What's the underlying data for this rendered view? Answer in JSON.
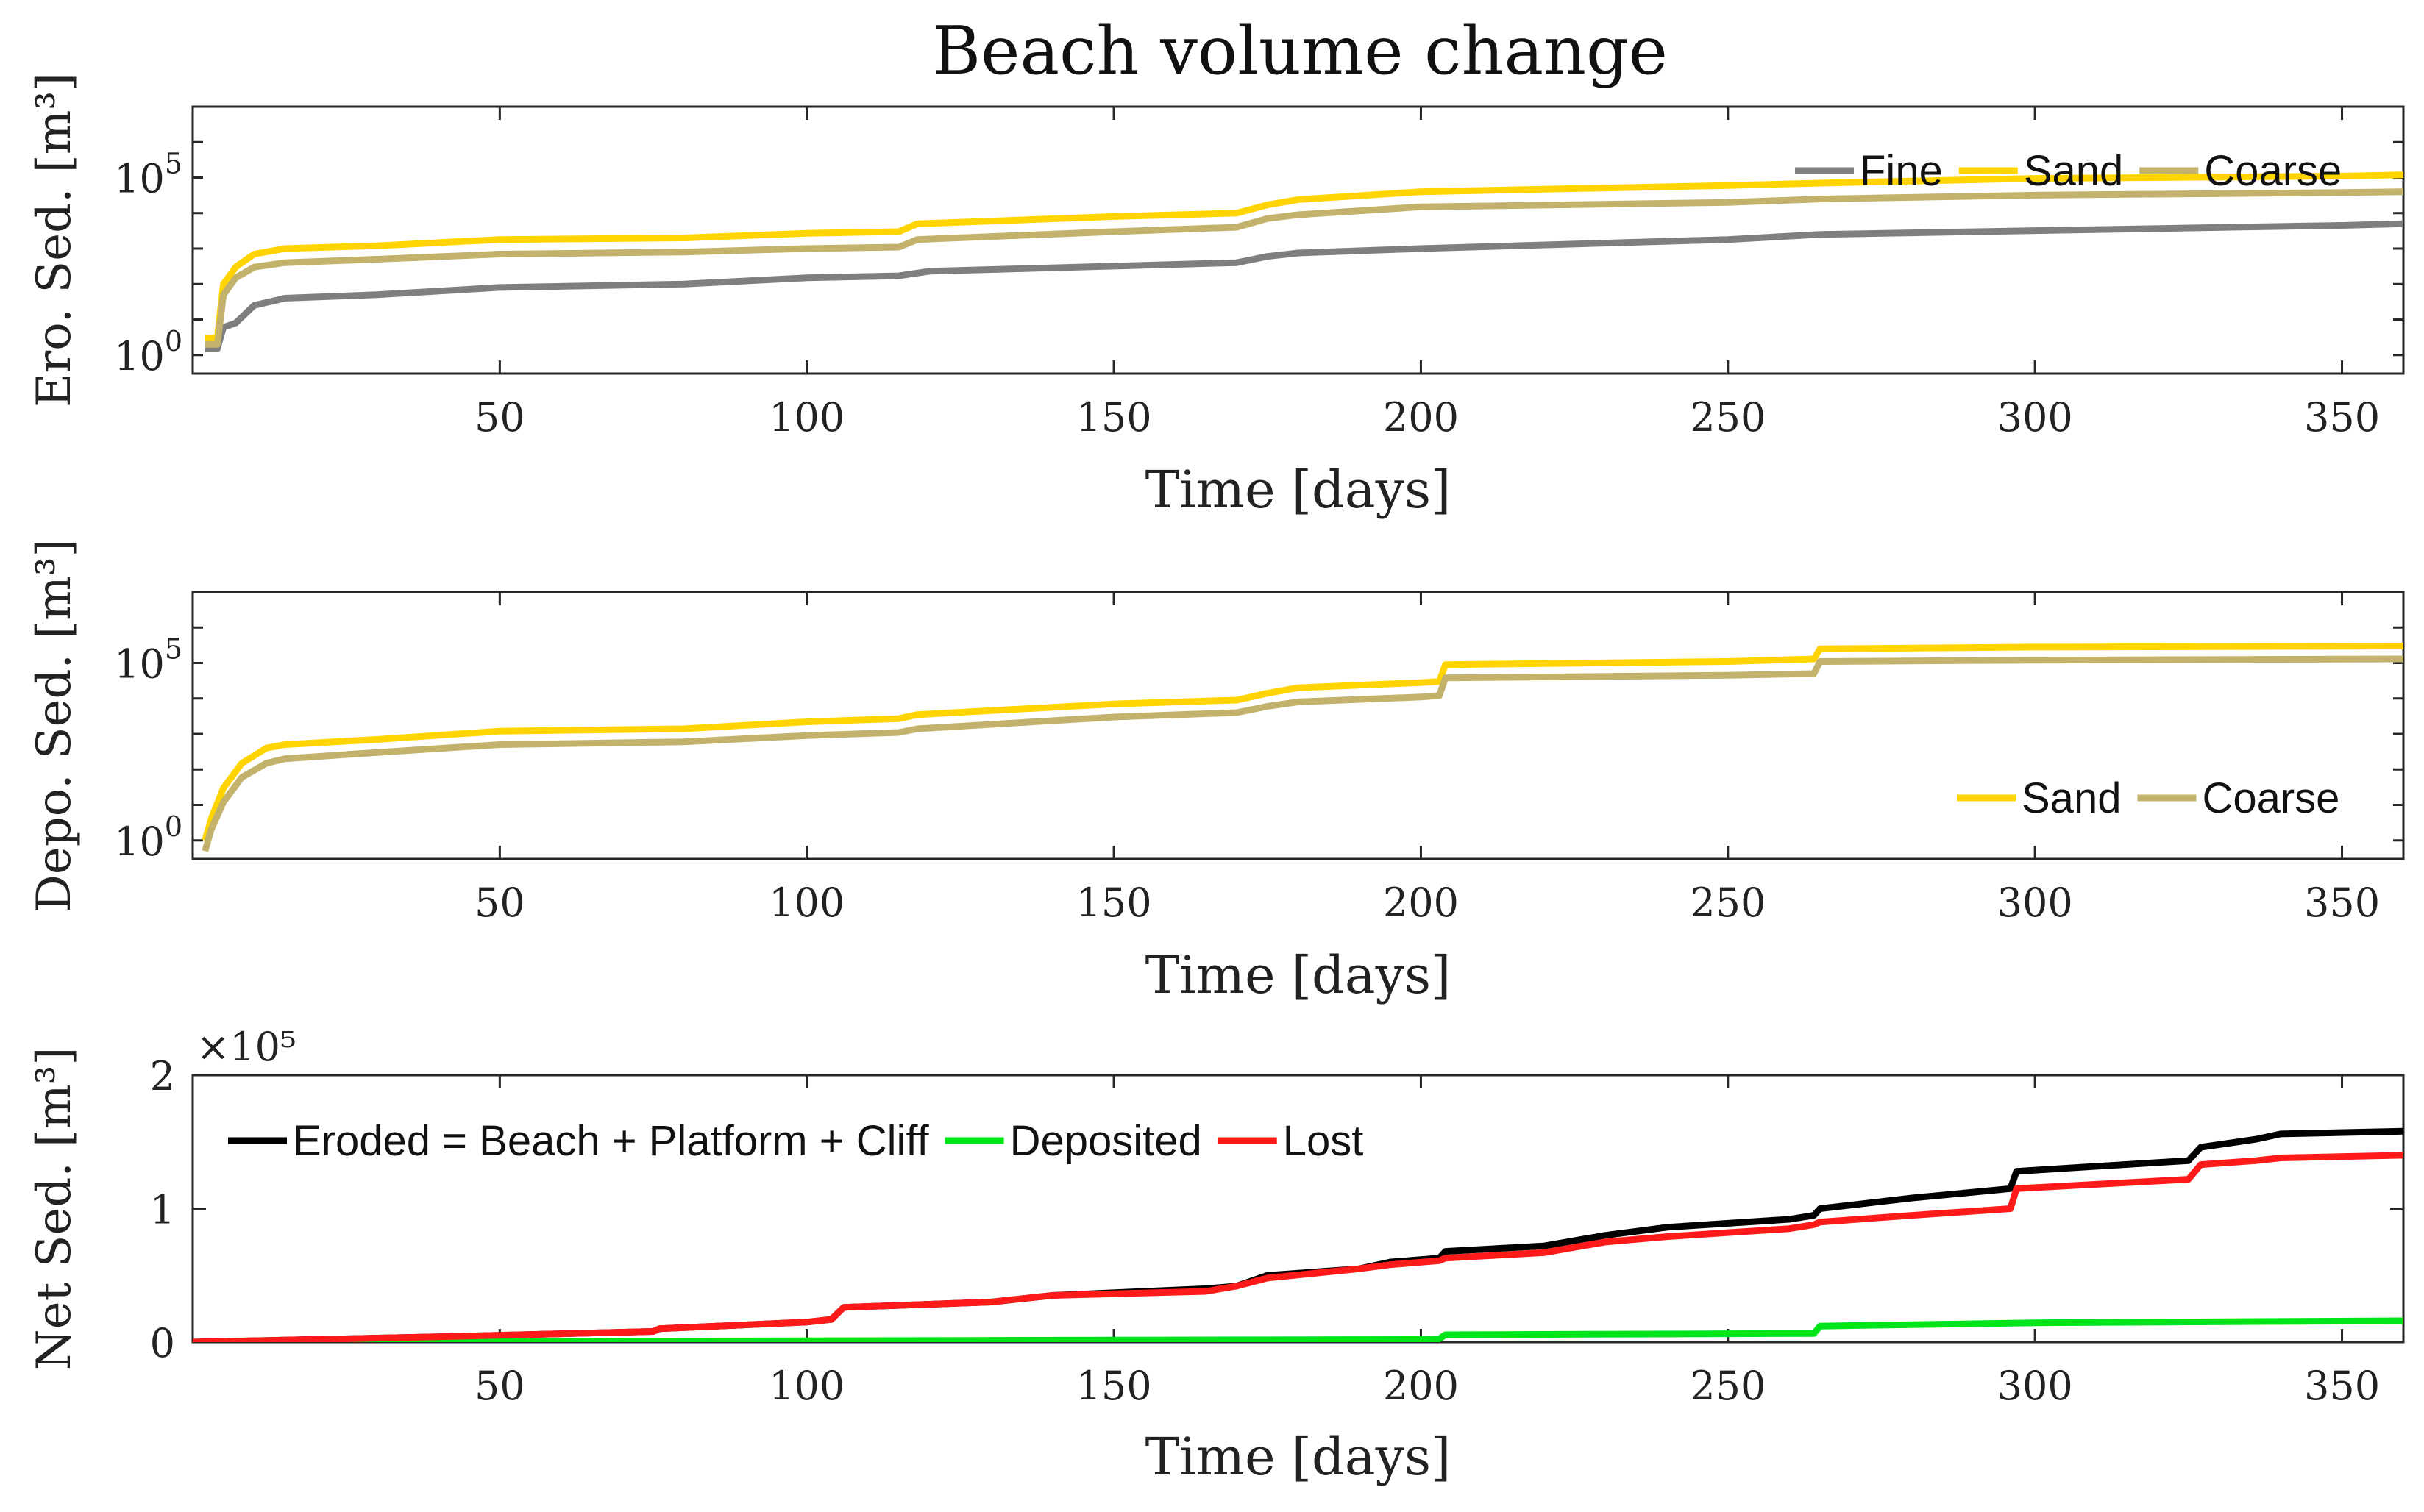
{
  "figure_title": "Beach volume change",
  "colors": {
    "fine": "#7f7f7f",
    "sand": "#ffd400",
    "coarse": "#c2b26b",
    "eroded": "#000000",
    "deposited": "#00e51a",
    "lost": "#ff1a1a"
  },
  "chart_data": [
    {
      "id": "erosion",
      "type": "line",
      "scale": "log",
      "title": "",
      "xlabel": "Time [days]",
      "ylabel": "Ero. Sed. [m³]",
      "xlim": [
        0,
        360
      ],
      "ylim": [
        0.3,
        10000000
      ],
      "xticks": [
        50,
        100,
        150,
        200,
        250,
        300,
        350
      ],
      "ytick_labels": [
        {
          "value": 1,
          "base": "10",
          "exp": "0"
        },
        {
          "value": 100000,
          "base": "10",
          "exp": "5"
        }
      ],
      "legend": {
        "position": "top-right",
        "entries": [
          "Fine",
          "Sand",
          "Coarse"
        ]
      },
      "series": [
        {
          "name": "Fine",
          "color": "#7f7f7f",
          "points": [
            [
              2,
              1.5
            ],
            [
              4,
              1.5
            ],
            [
              5,
              6
            ],
            [
              7,
              8
            ],
            [
              10,
              25
            ],
            [
              15,
              40
            ],
            [
              30,
              50
            ],
            [
              50,
              80
            ],
            [
              80,
              100
            ],
            [
              100,
              150
            ],
            [
              115,
              170
            ],
            [
              120,
              230
            ],
            [
              150,
              320
            ],
            [
              170,
              400
            ],
            [
              175,
              600
            ],
            [
              180,
              750
            ],
            [
              200,
              1000
            ],
            [
              250,
              1800
            ],
            [
              265,
              2500
            ],
            [
              300,
              3200
            ],
            [
              350,
              4500
            ],
            [
              360,
              5000
            ]
          ]
        },
        {
          "name": "Sand",
          "color": "#ffd400",
          "points": [
            [
              2,
              3
            ],
            [
              4,
              3
            ],
            [
              5,
              100
            ],
            [
              7,
              300
            ],
            [
              10,
              700
            ],
            [
              15,
              1000
            ],
            [
              30,
              1200
            ],
            [
              50,
              1800
            ],
            [
              80,
              2000
            ],
            [
              100,
              2700
            ],
            [
              115,
              3000
            ],
            [
              118,
              5000
            ],
            [
              150,
              8000
            ],
            [
              170,
              10000
            ],
            [
              175,
              17000
            ],
            [
              180,
              24000
            ],
            [
              200,
              40000
            ],
            [
              250,
              60000
            ],
            [
              265,
              70000
            ],
            [
              300,
              95000
            ],
            [
              350,
              110000
            ],
            [
              360,
              120000
            ]
          ]
        },
        {
          "name": "Coarse",
          "color": "#c2b26b",
          "points": [
            [
              2,
              2
            ],
            [
              4,
              2
            ],
            [
              5,
              50
            ],
            [
              7,
              150
            ],
            [
              10,
              300
            ],
            [
              15,
              400
            ],
            [
              30,
              500
            ],
            [
              50,
              700
            ],
            [
              80,
              800
            ],
            [
              100,
              1000
            ],
            [
              115,
              1100
            ],
            [
              118,
              1800
            ],
            [
              150,
              3000
            ],
            [
              170,
              4000
            ],
            [
              175,
              7000
            ],
            [
              180,
              9000
            ],
            [
              200,
              15000
            ],
            [
              250,
              20000
            ],
            [
              265,
              25000
            ],
            [
              300,
              32000
            ],
            [
              350,
              38000
            ],
            [
              360,
              40000
            ]
          ]
        }
      ]
    },
    {
      "id": "deposition",
      "type": "line",
      "scale": "log",
      "title": "",
      "xlabel": "Time [days]",
      "ylabel": "Depo. Sed. [m³]",
      "xlim": [
        0,
        360
      ],
      "ylim": [
        0.3,
        10000000
      ],
      "xticks": [
        50,
        100,
        150,
        200,
        250,
        300,
        350
      ],
      "ytick_labels": [
        {
          "value": 1,
          "base": "10",
          "exp": "0"
        },
        {
          "value": 100000,
          "base": "10",
          "exp": "5"
        }
      ],
      "legend": {
        "position": "bottom-right",
        "entries": [
          "Sand",
          "Coarse"
        ]
      },
      "series": [
        {
          "name": "Sand",
          "color": "#ffd400",
          "points": [
            [
              2,
              1
            ],
            [
              3,
              4
            ],
            [
              5,
              30
            ],
            [
              8,
              150
            ],
            [
              12,
              400
            ],
            [
              15,
              500
            ],
            [
              30,
              700
            ],
            [
              50,
              1200
            ],
            [
              80,
              1400
            ],
            [
              100,
              2200
            ],
            [
              115,
              2700
            ],
            [
              118,
              3500
            ],
            [
              150,
              7000
            ],
            [
              170,
              9000
            ],
            [
              175,
              14000
            ],
            [
              180,
              20000
            ],
            [
              200,
              28000
            ],
            [
              203,
              30000
            ],
            [
              204,
              90000
            ],
            [
              250,
              110000
            ],
            [
              264,
              130000
            ],
            [
              265,
              250000
            ],
            [
              300,
              280000
            ],
            [
              360,
              300000
            ]
          ]
        },
        {
          "name": "Coarse",
          "color": "#c2b26b",
          "points": [
            [
              2,
              0.5
            ],
            [
              3,
              2
            ],
            [
              5,
              12
            ],
            [
              8,
              60
            ],
            [
              12,
              150
            ],
            [
              15,
              200
            ],
            [
              30,
              300
            ],
            [
              50,
              500
            ],
            [
              80,
              600
            ],
            [
              100,
              900
            ],
            [
              115,
              1100
            ],
            [
              118,
              1400
            ],
            [
              150,
              3000
            ],
            [
              170,
              4000
            ],
            [
              175,
              6000
            ],
            [
              180,
              8000
            ],
            [
              200,
              11000
            ],
            [
              203,
              12000
            ],
            [
              204,
              38000
            ],
            [
              250,
              45000
            ],
            [
              264,
              50000
            ],
            [
              265,
              110000
            ],
            [
              300,
              120000
            ],
            [
              360,
              130000
            ]
          ]
        }
      ]
    },
    {
      "id": "net",
      "type": "line",
      "scale": "linear",
      "title": "",
      "xlabel": "Time [days]",
      "ylabel": "Net Sed. [m³]",
      "multiplier_label": "×10⁵",
      "xlim": [
        0,
        360
      ],
      "ylim": [
        0,
        2
      ],
      "xticks": [
        50,
        100,
        150,
        200,
        250,
        300,
        350
      ],
      "yticks": [
        0,
        1,
        2
      ],
      "legend": {
        "position": "top-left",
        "entries": [
          "Eroded = Beach + Platform + Cliff",
          "Deposited",
          "Lost"
        ]
      },
      "series": [
        {
          "name": "Eroded = Beach + Platform + Cliff",
          "color": "#000000",
          "points": [
            [
              0,
              0
            ],
            [
              20,
              0.02
            ],
            [
              40,
              0.04
            ],
            [
              75,
              0.08
            ],
            [
              76,
              0.1
            ],
            [
              100,
              0.15
            ],
            [
              104,
              0.17
            ],
            [
              106,
              0.26
            ],
            [
              130,
              0.3
            ],
            [
              140,
              0.35
            ],
            [
              165,
              0.4
            ],
            [
              170,
              0.42
            ],
            [
              175,
              0.5
            ],
            [
              190,
              0.55
            ],
            [
              195,
              0.6
            ],
            [
              203,
              0.63
            ],
            [
              204,
              0.68
            ],
            [
              220,
              0.72
            ],
            [
              230,
              0.8
            ],
            [
              240,
              0.86
            ],
            [
              260,
              0.92
            ],
            [
              264,
              0.95
            ],
            [
              265,
              1.0
            ],
            [
              280,
              1.08
            ],
            [
              296,
              1.15
            ],
            [
              297,
              1.28
            ],
            [
              325,
              1.36
            ],
            [
              327,
              1.46
            ],
            [
              336,
              1.52
            ],
            [
              340,
              1.56
            ],
            [
              360,
              1.58
            ]
          ]
        },
        {
          "name": "Deposited",
          "color": "#00e51a",
          "points": [
            [
              0,
              0
            ],
            [
              100,
              0.01
            ],
            [
              150,
              0.015
            ],
            [
              200,
              0.02
            ],
            [
              203,
              0.025
            ],
            [
              204,
              0.055
            ],
            [
              264,
              0.065
            ],
            [
              265,
              0.12
            ],
            [
              300,
              0.145
            ],
            [
              360,
              0.16
            ]
          ]
        },
        {
          "name": "Lost",
          "color": "#ff1a1a",
          "points": [
            [
              0,
              0
            ],
            [
              20,
              0.02
            ],
            [
              40,
              0.04
            ],
            [
              75,
              0.08
            ],
            [
              76,
              0.1
            ],
            [
              100,
              0.15
            ],
            [
              104,
              0.17
            ],
            [
              106,
              0.26
            ],
            [
              130,
              0.3
            ],
            [
              140,
              0.35
            ],
            [
              165,
              0.38
            ],
            [
              170,
              0.42
            ],
            [
              175,
              0.48
            ],
            [
              190,
              0.55
            ],
            [
              195,
              0.58
            ],
            [
              203,
              0.61
            ],
            [
              204,
              0.63
            ],
            [
              220,
              0.67
            ],
            [
              230,
              0.75
            ],
            [
              240,
              0.79
            ],
            [
              260,
              0.85
            ],
            [
              264,
              0.88
            ],
            [
              265,
              0.9
            ],
            [
              280,
              0.95
            ],
            [
              296,
              1.0
            ],
            [
              297,
              1.15
            ],
            [
              325,
              1.22
            ],
            [
              327,
              1.33
            ],
            [
              336,
              1.36
            ],
            [
              340,
              1.38
            ],
            [
              360,
              1.4
            ]
          ]
        }
      ]
    }
  ]
}
